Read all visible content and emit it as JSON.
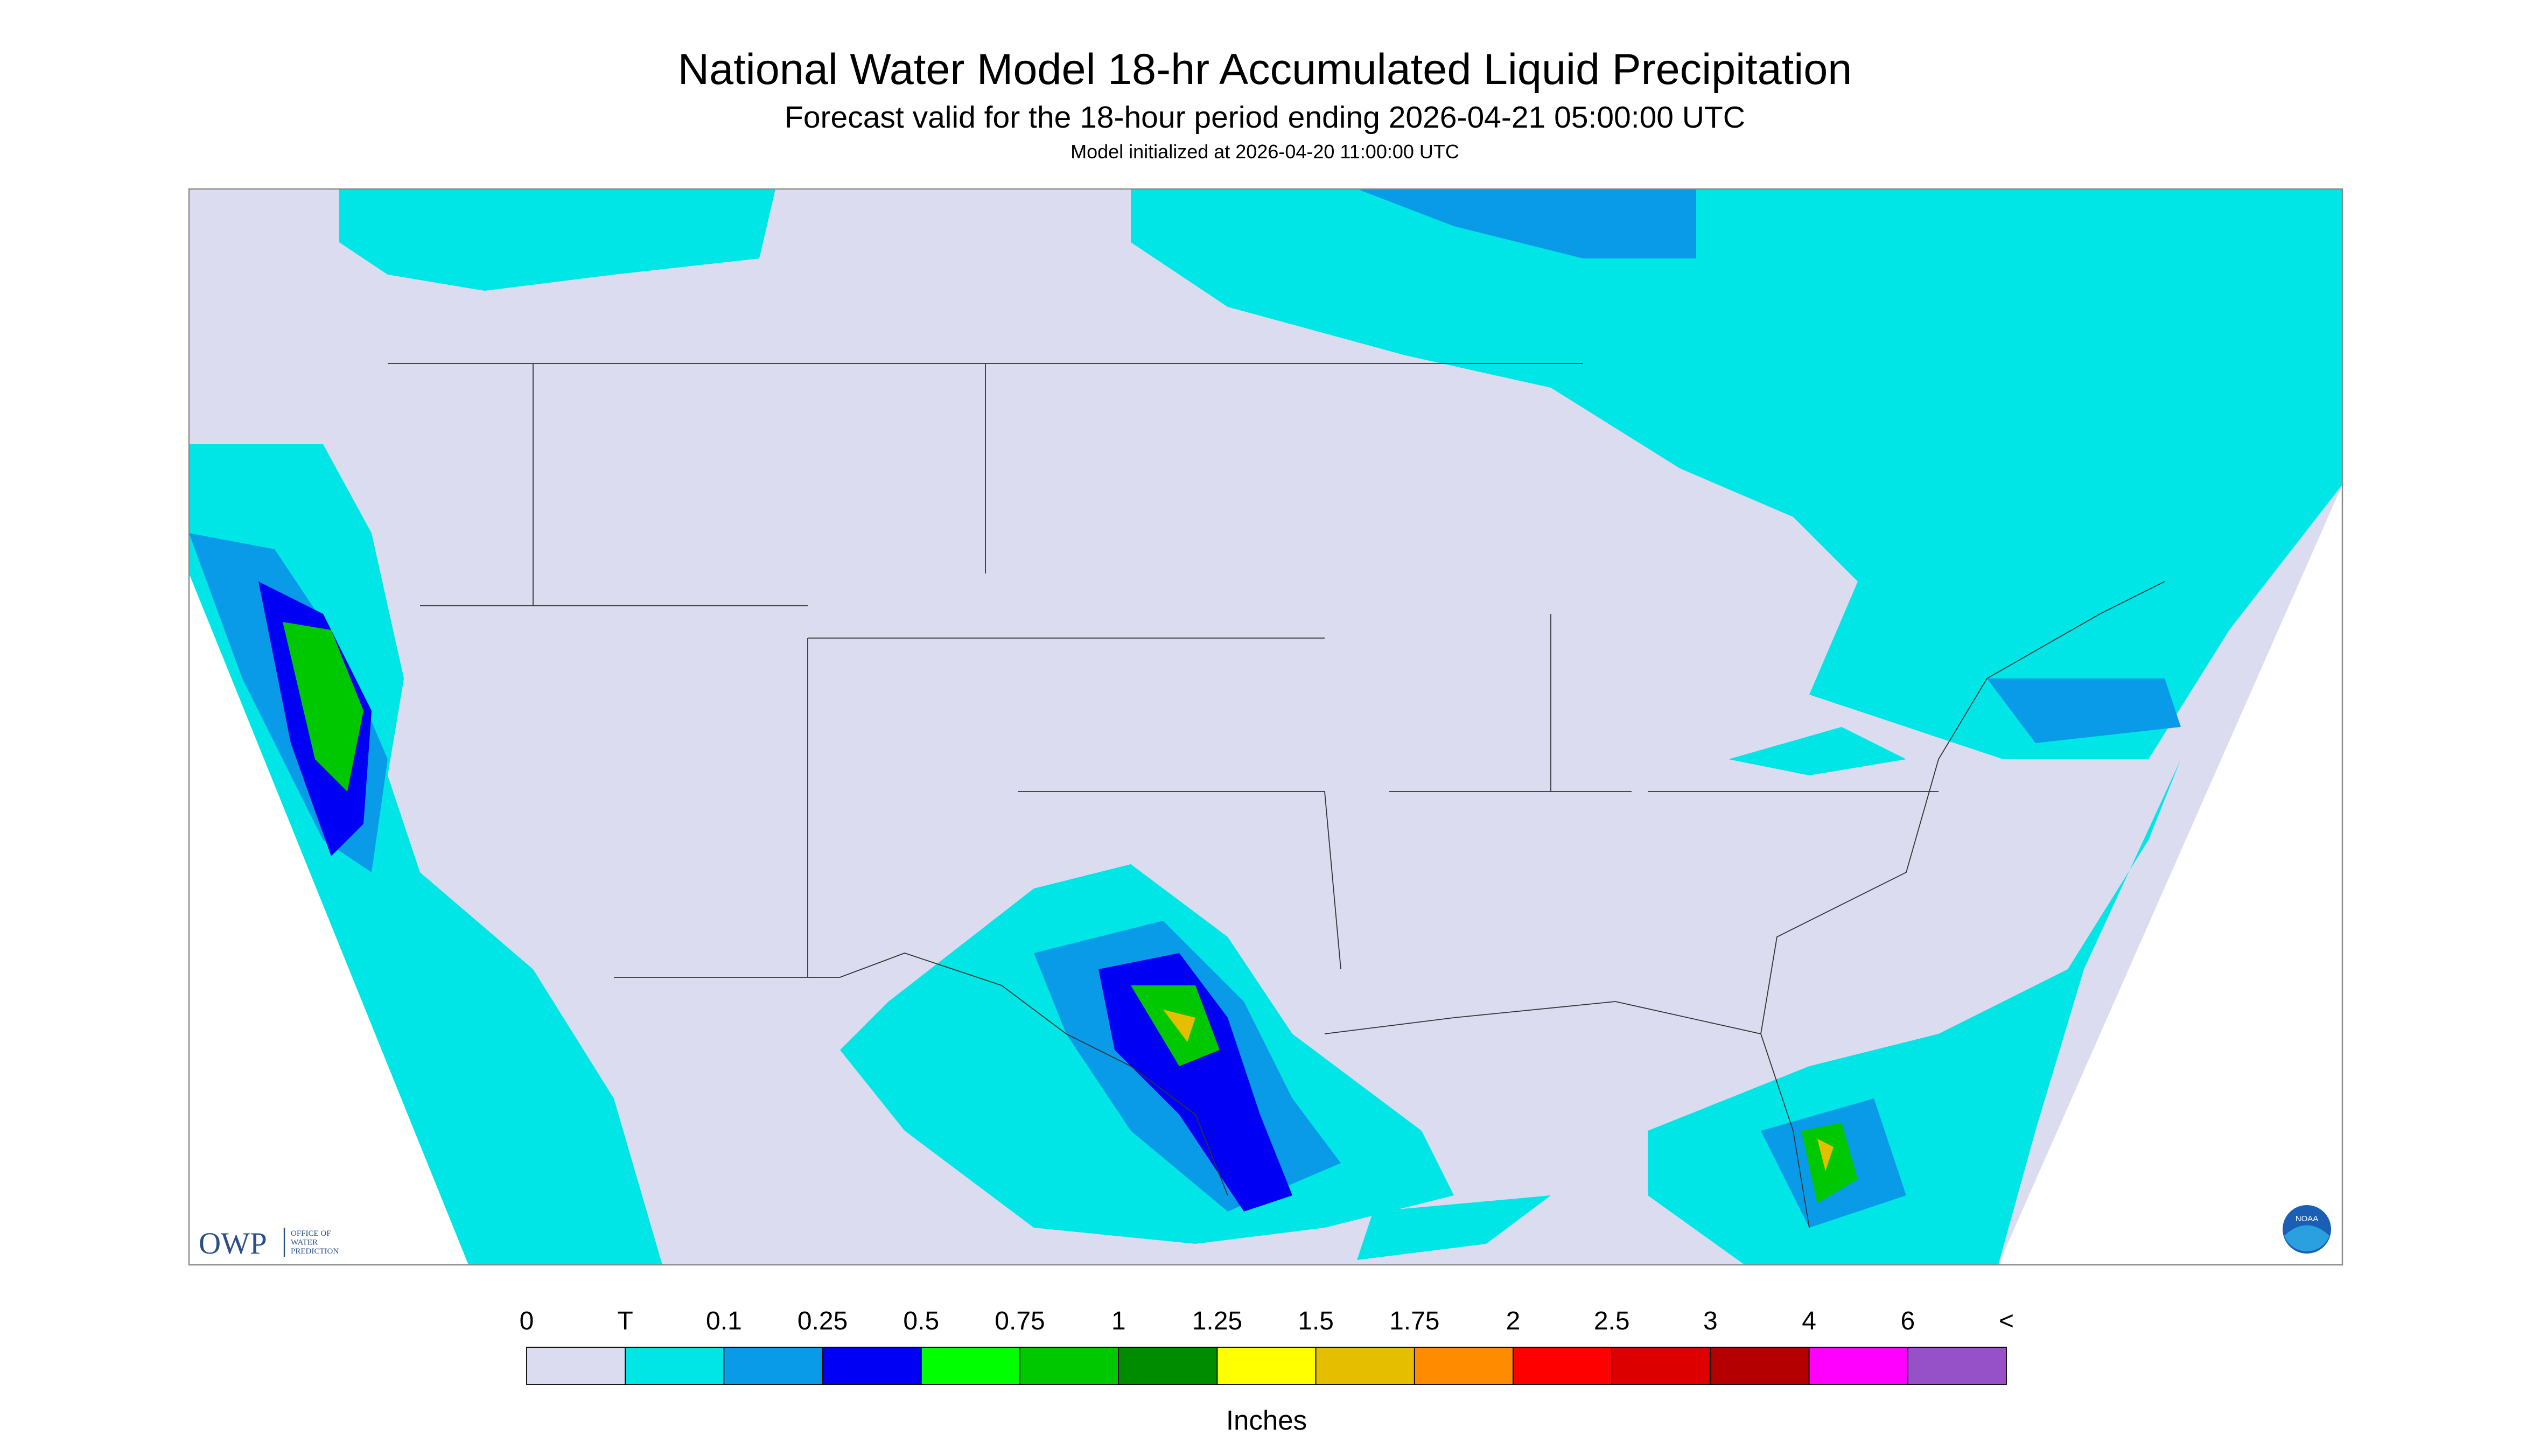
{
  "header": {
    "title": "National Water Model 18-hr Accumulated Liquid Precipitation",
    "subtitle": "Forecast valid for the 18-hour period ending 2026-04-21 05:00:00 UTC",
    "note": "Model initialized at 2026-04-20 11:00:00 UTC"
  },
  "legend": {
    "labels": [
      "0",
      "T",
      "0.1",
      "0.25",
      "0.5",
      "0.75",
      "1",
      "1.25",
      "1.5",
      "1.75",
      "2",
      "2.5",
      "3",
      "4",
      "6",
      "<"
    ],
    "colors": [
      "#dcdcf0",
      "#00e6e6",
      "#0a9be8",
      "#0000f5",
      "#00ff00",
      "#00c800",
      "#008c00",
      "#ffff00",
      "#e6be00",
      "#ff8c00",
      "#ff0000",
      "#dc0000",
      "#b40000",
      "#ff00ff",
      "#9650c8"
    ],
    "unit": "Inches"
  },
  "logos": {
    "owp": "OWP",
    "owp_lines": [
      "OFFICE OF",
      "WATER",
      "PREDICTION"
    ],
    "noaa": "NOAA"
  }
}
